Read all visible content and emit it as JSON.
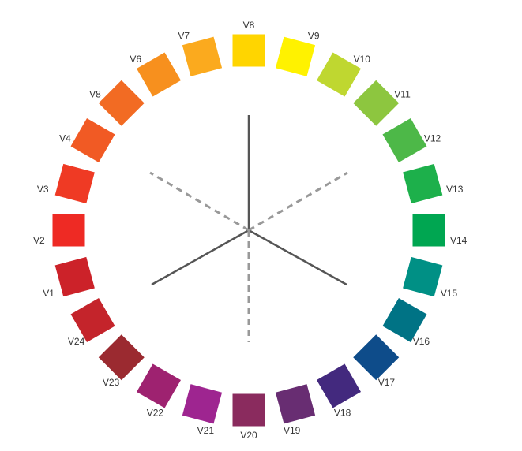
{
  "swatches": [
    {
      "label": "V8",
      "color": "#FFD500"
    },
    {
      "label": "V9",
      "color": "#FFF200"
    },
    {
      "label": "V10",
      "color": "#BFD730"
    },
    {
      "label": "V11",
      "color": "#8DC63F"
    },
    {
      "label": "V12",
      "color": "#4DB848"
    },
    {
      "label": "V13",
      "color": "#1DB04B"
    },
    {
      "label": "V14",
      "color": "#00A651"
    },
    {
      "label": "V15",
      "color": "#009085"
    },
    {
      "label": "V16",
      "color": "#007385"
    },
    {
      "label": "V17",
      "color": "#0E4C8A"
    },
    {
      "label": "V18",
      "color": "#43297E"
    },
    {
      "label": "V19",
      "color": "#682D72"
    },
    {
      "label": "V20",
      "color": "#8A2B5E"
    },
    {
      "label": "V21",
      "color": "#9E2590"
    },
    {
      "label": "V22",
      "color": "#9E2270"
    },
    {
      "label": "V23",
      "color": "#9B2A30"
    },
    {
      "label": "V24",
      "color": "#C4242B"
    },
    {
      "label": "V1",
      "color": "#CC2229"
    },
    {
      "label": "V2",
      "color": "#EE2A24"
    },
    {
      "label": "V3",
      "color": "#EF3A24"
    },
    {
      "label": "V4",
      "color": "#F15A24"
    },
    {
      "label": "V8",
      "color": "#F26B23"
    },
    {
      "label": "V6",
      "color": "#F7901E"
    },
    {
      "label": "V7",
      "color": "#FBAA1E"
    }
  ],
  "lines": {
    "solid_color": "#555555",
    "dashed_color": "#999999"
  }
}
